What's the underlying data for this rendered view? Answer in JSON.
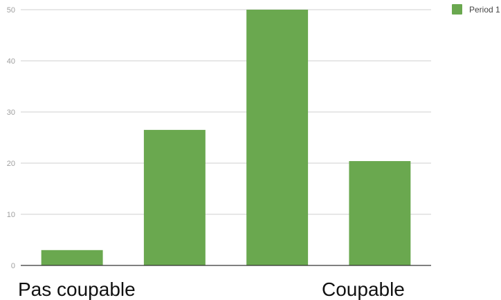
{
  "chart_data": {
    "type": "bar",
    "categories": [
      "",
      "",
      "",
      ""
    ],
    "series": [
      {
        "name": "Period 1",
        "color": "#6aa84f",
        "values": [
          3,
          26.5,
          50,
          20.4
        ]
      }
    ],
    "ylim": [
      0,
      50
    ],
    "yticks": [
      "0",
      "10",
      "20",
      "30",
      "40",
      "50"
    ],
    "grid": true,
    "legend_position": "top-right",
    "annotations": {
      "left_label": "Pas coupable",
      "right_label": "Coupable"
    }
  }
}
